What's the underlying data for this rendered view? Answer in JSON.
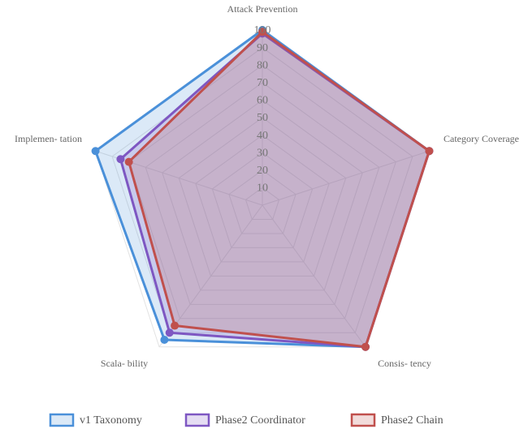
{
  "chart_data": {
    "type": "radar",
    "categories": [
      "Attack Prevention",
      "Category Coverage",
      "Consis- tency",
      "Scala- bility",
      "Implemen- tation"
    ],
    "series": [
      {
        "name": "v1 Taxonomy",
        "color": "#4a90d9",
        "values": [
          100,
          100,
          100,
          95,
          100
        ]
      },
      {
        "name": "Phase2 Coordinator",
        "color": "#7e57c2",
        "values": [
          98,
          100,
          100,
          90,
          85
        ]
      },
      {
        "name": "Phase2 Chain",
        "color": "#c0504d",
        "values": [
          99,
          100,
          100,
          85,
          80
        ]
      }
    ],
    "ylim": [
      0,
      100
    ],
    "yticks": [
      10,
      20,
      30,
      40,
      50,
      60,
      70,
      80,
      90,
      100
    ],
    "grid": true,
    "legend": "bottom"
  }
}
